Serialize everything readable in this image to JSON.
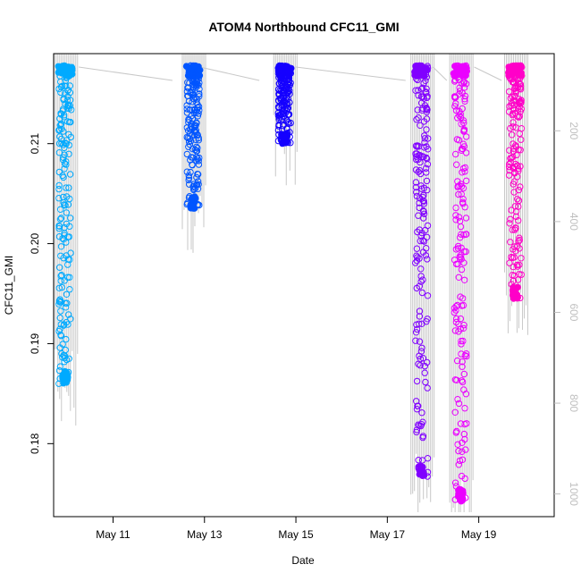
{
  "chart_data": {
    "type": "scatter",
    "title": "ATOM4 Northbound CFC11_GMI",
    "xlabel": "Date",
    "ylabel": "CFC11_GMI",
    "x_ticks": [
      {
        "day": 11,
        "label": "May 11"
      },
      {
        "day": 13,
        "label": "May 13"
      },
      {
        "day": 15,
        "label": "May 15"
      },
      {
        "day": 17,
        "label": "May 17"
      },
      {
        "day": 19,
        "label": "May 19"
      }
    ],
    "xlim": [
      9.7,
      20.65
    ],
    "y_ticks": [
      0.18,
      0.19,
      0.2,
      0.21
    ],
    "y_tick_labels": [
      "0.18",
      "0.19",
      "0.20",
      "0.21"
    ],
    "ylim": [
      0.1727,
      0.219
    ],
    "y2_ticks": [
      200,
      400,
      600,
      800,
      1000
    ],
    "y2_tick_labels": [
      "200",
      "400",
      "600",
      "800",
      "1000"
    ],
    "y2lim": [
      1050,
      30
    ],
    "y2_reversed": true,
    "series": [
      {
        "color": "#00AAFF",
        "day": 9.95,
        "ymin": 0.186,
        "ymax": 0.2178
      },
      {
        "color": "#0055FF",
        "day": 12.75,
        "ymin": 0.2035,
        "ymax": 0.2178
      },
      {
        "color": "#1500FF",
        "day": 14.75,
        "ymin": 0.21,
        "ymax": 0.2178
      },
      {
        "color": "#8000FF",
        "day": 17.75,
        "ymin": 0.1767,
        "ymax": 0.2178
      },
      {
        "color": "#EA00FF",
        "day": 18.6,
        "ymin": 0.1742,
        "ymax": 0.2178
      },
      {
        "color": "#FF00C8",
        "day": 19.8,
        "ymin": 0.1945,
        "ymax": 0.2178
      }
    ],
    "secondary_line_color": "#c8c8c8",
    "legend": false,
    "grid": false
  }
}
